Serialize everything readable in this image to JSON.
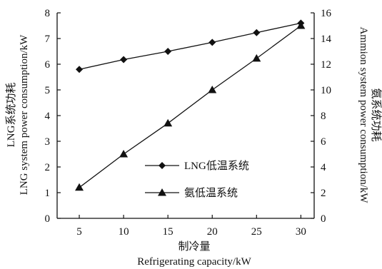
{
  "chart_data": {
    "type": "line",
    "x": [
      5,
      10,
      15,
      20,
      25,
      30
    ],
    "xlim": [
      2.5,
      31.5
    ],
    "x_ticks": [
      5,
      10,
      15,
      20,
      25,
      30
    ],
    "xlabel_cn": "制冷量",
    "xlabel_en": "Refrigerating capacity/kW",
    "left_axis": {
      "label_cn": "LNG系统功耗",
      "label_en": "LNG system power consumption/kW",
      "ylim": [
        0,
        8
      ],
      "ticks": [
        0,
        1,
        2,
        3,
        4,
        5,
        6,
        7,
        8
      ]
    },
    "right_axis": {
      "label_cn": "氨系统功耗",
      "label_en": "Ammion system power consumption/kW",
      "ylim": [
        0,
        16
      ],
      "ticks": [
        0,
        2,
        4,
        6,
        8,
        10,
        12,
        14,
        16
      ]
    },
    "series": [
      {
        "name": "LNG低温系统",
        "axis": "left",
        "marker": "diamond",
        "values": [
          5.8,
          6.18,
          6.5,
          6.85,
          7.23,
          7.6
        ]
      },
      {
        "name": "氨低温系统",
        "axis": "right",
        "marker": "triangle",
        "values": [
          2.4,
          5.0,
          7.4,
          10.0,
          12.45,
          15.0
        ]
      }
    ],
    "legend_position": "center-right",
    "grid": false,
    "colors": {
      "line": "#111111",
      "marker": "#111111"
    }
  }
}
